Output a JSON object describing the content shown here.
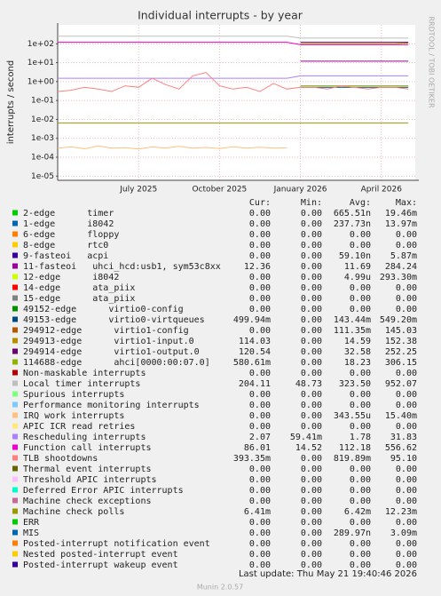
{
  "chart_data": {
    "type": "line",
    "title": "Individual interrupts - by year",
    "y_label": "interrupts / second",
    "side_note": "RRDTOOL / TOBI OETIKER",
    "footer": "Last update: Thu May 21 19:40:46 2026",
    "version": "Munin 2.0.57",
    "yscale": "log",
    "grid": true,
    "ylim": [
      6e-06,
      1000
    ],
    "yticks": [
      {
        "value": 100,
        "label": "1e+02"
      },
      {
        "value": 10,
        "label": "1e+01"
      },
      {
        "value": 1,
        "label": "1e+00"
      },
      {
        "value": 0.1,
        "label": "1e-01"
      },
      {
        "value": 0.01,
        "label": "1e-02"
      },
      {
        "value": 0.001,
        "label": "1e-03"
      },
      {
        "value": 0.0001,
        "label": "1e-04"
      },
      {
        "value": 1e-05,
        "label": "1e-05"
      }
    ],
    "categories": [
      null,
      null,
      null,
      null,
      null,
      null,
      "July 2025",
      null,
      null,
      null,
      null,
      null,
      "October 2025",
      null,
      null,
      null,
      null,
      null,
      "January 2026",
      null,
      null,
      null,
      null,
      null,
      "April 2026",
      null,
      null
    ],
    "legend_columns": [
      "Cur:",
      "Min:",
      "Avg:",
      "Max:"
    ],
    "series": [
      {
        "name": "2-edge      timer",
        "color": "#00CC00",
        "stats": [
          "0.00",
          "0.00",
          "665.51n",
          "19.46m"
        ]
      },
      {
        "name": "1-edge      i8042",
        "color": "#0066B3",
        "stats": [
          "0.00",
          "0.00",
          "237.73n",
          "13.97m"
        ]
      },
      {
        "name": "6-edge      floppy",
        "color": "#FF8000",
        "stats": [
          "0.00",
          "0.00",
          "0.00",
          "0.00"
        ]
      },
      {
        "name": "8-edge      rtc0",
        "color": "#FFCC00",
        "stats": [
          "0.00",
          "0.00",
          "0.00",
          "0.00"
        ]
      },
      {
        "name": "9-fasteoi   acpi",
        "color": "#330099",
        "stats": [
          "0.00",
          "0.00",
          "59.10n",
          "5.87m"
        ]
      },
      {
        "name": "11-fasteoi   uhci_hcd:usb1, sym53c8xx",
        "color": "#990099",
        "stats": [
          "12.36",
          "0.00",
          "11.69",
          "284.24"
        ],
        "values": [
          null,
          null,
          null,
          null,
          null,
          null,
          null,
          null,
          null,
          null,
          null,
          null,
          null,
          null,
          null,
          null,
          null,
          null,
          12,
          12,
          12,
          12,
          12,
          12,
          12,
          12,
          12
        ]
      },
      {
        "name": "12-edge      i8042",
        "color": "#CCFF00",
        "stats": [
          "0.00",
          "0.00",
          "4.99u",
          "293.30m"
        ]
      },
      {
        "name": "14-edge      ata_piix",
        "color": "#FF0000",
        "stats": [
          "0.00",
          "0.00",
          "0.00",
          "0.00"
        ]
      },
      {
        "name": "15-edge      ata_piix",
        "color": "#808080",
        "stats": [
          "0.00",
          "0.00",
          "0.00",
          "0.00"
        ]
      },
      {
        "name": "49152-edge      virtio0-config",
        "color": "#008F00",
        "stats": [
          "0.00",
          "0.00",
          "0.00",
          "0.00"
        ]
      },
      {
        "name": "49153-edge      virtio0-virtqueues",
        "color": "#00487D",
        "stats": [
          "499.94m",
          "0.00",
          "143.44m",
          "549.20m"
        ],
        "values": [
          null,
          null,
          null,
          null,
          null,
          null,
          null,
          null,
          null,
          null,
          null,
          null,
          null,
          null,
          null,
          null,
          null,
          null,
          0.5,
          0.5,
          0.5,
          0.5,
          0.5,
          0.5,
          0.5,
          0.5,
          0.5
        ]
      },
      {
        "name": "294912-edge      virtio1-config",
        "color": "#B35A00",
        "stats": [
          "0.00",
          "0.00",
          "111.35m",
          "145.03"
        ]
      },
      {
        "name": "294913-edge      virtio1-input.0",
        "color": "#B38F00",
        "stats": [
          "114.03",
          "0.00",
          "14.59",
          "152.38"
        ],
        "values": [
          null,
          null,
          null,
          null,
          null,
          null,
          null,
          null,
          null,
          null,
          null,
          null,
          null,
          null,
          null,
          null,
          null,
          null,
          100,
          100,
          100,
          100,
          100,
          100,
          100,
          100,
          110
        ]
      },
      {
        "name": "294914-edge      virtio1-output.0",
        "color": "#6B006B",
        "stats": [
          "120.54",
          "0.00",
          "32.58",
          "252.25"
        ],
        "values": [
          null,
          null,
          null,
          null,
          null,
          null,
          null,
          null,
          null,
          null,
          null,
          null,
          null,
          null,
          null,
          null,
          null,
          null,
          120,
          120,
          120,
          120,
          120,
          120,
          120,
          120,
          120
        ]
      },
      {
        "name": "114688-edge      ahci[0000:00:07.0]",
        "color": "#8FB300",
        "stats": [
          "580.61m",
          "0.00",
          "18.23",
          "306.15"
        ],
        "values": [
          null,
          null,
          null,
          null,
          null,
          null,
          null,
          null,
          null,
          null,
          null,
          null,
          null,
          null,
          null,
          null,
          null,
          null,
          0.6,
          0.6,
          0.6,
          0.6,
          0.6,
          0.6,
          0.6,
          0.6,
          0.6
        ]
      },
      {
        "name": "Non-maskable interrupts",
        "color": "#B30000",
        "stats": [
          "0.00",
          "0.00",
          "0.00",
          "0.00"
        ]
      },
      {
        "name": "Local timer interrupts",
        "color": "#BEBEBE",
        "stats": [
          "204.11",
          "48.73",
          "323.50",
          "952.07"
        ],
        "values": [
          250,
          250,
          250,
          250,
          250,
          250,
          250,
          250,
          250,
          250,
          250,
          250,
          250,
          250,
          250,
          250,
          250,
          250,
          200,
          200,
          200,
          200,
          200,
          200,
          200,
          200,
          200
        ]
      },
      {
        "name": "Spurious interrupts",
        "color": "#80FF80",
        "stats": [
          "0.00",
          "0.00",
          "0.00",
          "0.00"
        ]
      },
      {
        "name": "Performance monitoring interrupts",
        "color": "#80C9FF",
        "stats": [
          "0.00",
          "0.00",
          "0.00",
          "0.00"
        ]
      },
      {
        "name": "IRQ work interrupts",
        "color": "#FFC080",
        "stats": [
          "0.00",
          "0.00",
          "343.55u",
          "15.40m"
        ],
        "values": [
          0.0003,
          0.00035,
          0.00028,
          0.0004,
          0.0003,
          0.00032,
          0.00027,
          0.00035,
          0.0003,
          0.00038,
          0.0003,
          0.00033,
          0.00029,
          0.00036,
          0.0003,
          0.00034,
          0.0003,
          0.00031,
          null,
          null,
          null,
          null,
          null,
          null,
          null,
          null,
          null
        ]
      },
      {
        "name": "APIC ICR read retries",
        "color": "#FFE680",
        "stats": [
          "0.00",
          "0.00",
          "0.00",
          "0.00"
        ]
      },
      {
        "name": "Rescheduling interrupts",
        "color": "#AA80FF",
        "stats": [
          "2.07",
          "59.41m",
          "1.78",
          "31.83"
        ],
        "values": [
          1.5,
          1.5,
          1.5,
          1.5,
          1.5,
          1.5,
          1.5,
          1.5,
          1.5,
          1.5,
          1.5,
          1.5,
          1.5,
          1.5,
          1.5,
          1.5,
          1.5,
          1.5,
          2,
          2,
          2,
          2,
          2,
          2,
          2,
          2,
          2
        ]
      },
      {
        "name": "Function call interrupts",
        "color": "#EE00CC",
        "stats": [
          "86.01",
          "14.52",
          "112.18",
          "556.62"
        ],
        "values": [
          120,
          120,
          120,
          120,
          120,
          120,
          120,
          120,
          120,
          120,
          120,
          120,
          120,
          120,
          120,
          120,
          120,
          120,
          90,
          90,
          90,
          90,
          90,
          90,
          90,
          90,
          90
        ]
      },
      {
        "name": "TLB shootdowns",
        "color": "#FF8080",
        "stats": [
          "393.35m",
          "0.00",
          "819.89m",
          "95.10"
        ],
        "values": [
          0.3,
          0.35,
          0.5,
          0.4,
          0.3,
          0.6,
          0.5,
          1.5,
          0.7,
          0.4,
          2,
          3,
          0.6,
          0.4,
          0.5,
          0.3,
          0.8,
          0.4,
          0.5,
          0.5,
          0.4,
          0.6,
          0.5,
          0.4,
          0.5,
          0.5,
          0.4
        ]
      },
      {
        "name": "Thermal event interrupts",
        "color": "#666600",
        "stats": [
          "0.00",
          "0.00",
          "0.00",
          "0.00"
        ]
      },
      {
        "name": "Threshold APIC interrupts",
        "color": "#FFBFFF",
        "stats": [
          "0.00",
          "0.00",
          "0.00",
          "0.00"
        ]
      },
      {
        "name": "Deferred Error APIC interrupts",
        "color": "#00FFCC",
        "stats": [
          "0.00",
          "0.00",
          "0.00",
          "0.00"
        ]
      },
      {
        "name": "Machine check exceptions",
        "color": "#CC6699",
        "stats": [
          "0.00",
          "0.00",
          "0.00",
          "0.00"
        ]
      },
      {
        "name": "Machine check polls",
        "color": "#999900",
        "stats": [
          "6.41m",
          "0.00",
          "6.42m",
          "12.23m"
        ],
        "values": [
          0.0065,
          0.0065,
          0.0065,
          0.0065,
          0.0065,
          0.0065,
          0.0065,
          0.0065,
          0.0065,
          0.0065,
          0.0065,
          0.0065,
          0.0065,
          0.0065,
          0.0065,
          0.0065,
          0.0065,
          0.0065,
          0.0065,
          0.0065,
          0.0065,
          0.0065,
          0.0065,
          0.0065,
          0.0065,
          0.0065,
          0.0065
        ]
      },
      {
        "name": "ERR",
        "color": "#00CC00",
        "stats": [
          "0.00",
          "0.00",
          "0.00",
          "0.00"
        ]
      },
      {
        "name": "MIS",
        "color": "#0066B3",
        "stats": [
          "0.00",
          "0.00",
          "289.97n",
          "3.09m"
        ]
      },
      {
        "name": "Posted-interrupt notification event",
        "color": "#FF8000",
        "stats": [
          "0.00",
          "0.00",
          "0.00",
          "0.00"
        ]
      },
      {
        "name": "Nested posted-interrupt event",
        "color": "#FFCC00",
        "stats": [
          "0.00",
          "0.00",
          "0.00",
          "0.00"
        ]
      },
      {
        "name": "Posted-interrupt wakeup event",
        "color": "#330099",
        "stats": [
          "0.00",
          "0.00",
          "0.00",
          "0.00"
        ]
      }
    ]
  }
}
